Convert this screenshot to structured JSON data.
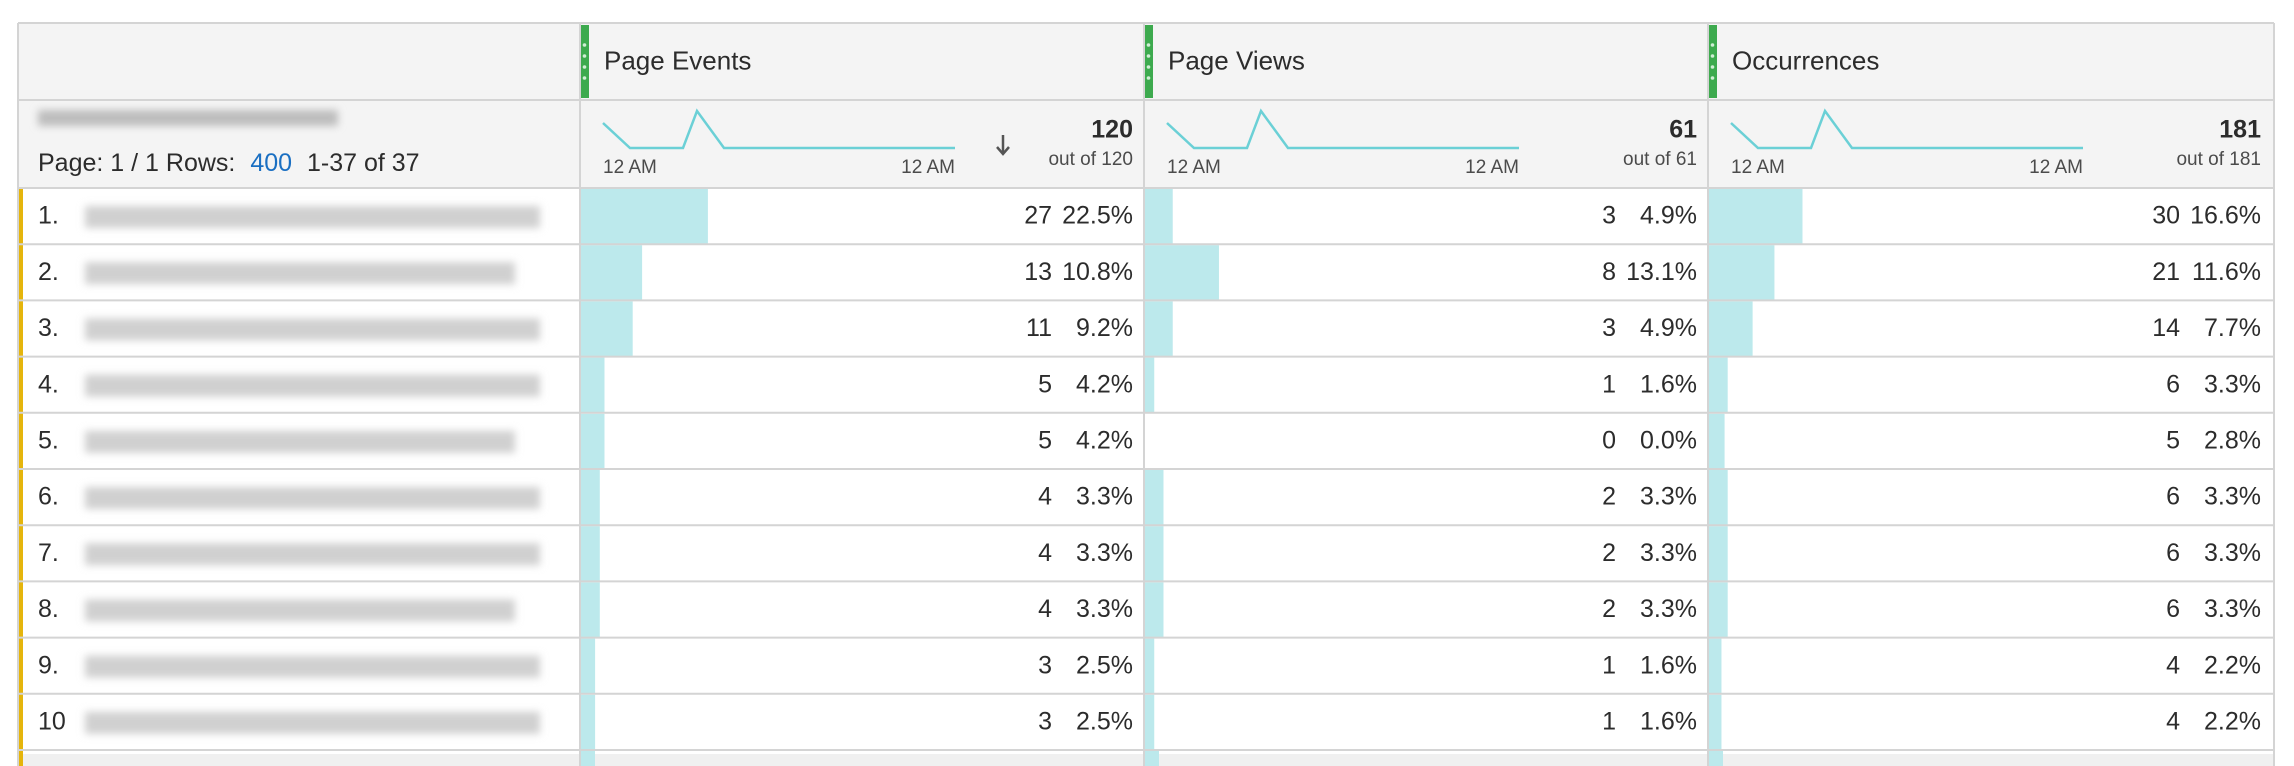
{
  "pagination": {
    "page_label": "Page: 1 / 1",
    "rows_label": "Rows:",
    "rows_value": "400",
    "range": "1-37 of 37"
  },
  "columns": [
    {
      "name": "Page Events",
      "total": 120,
      "total_label": "out of 120",
      "axis_start": "12 AM",
      "axis_end": "12 AM"
    },
    {
      "name": "Page Views",
      "total": 61,
      "total_label": "out of 61",
      "axis_start": "12 AM",
      "axis_end": "12 AM"
    },
    {
      "name": "Occurrences",
      "total": 181,
      "total_label": "out of 181",
      "axis_start": "12 AM",
      "axis_end": "12 AM"
    }
  ],
  "rows": [
    {
      "rank": "1.",
      "cells": [
        {
          "value": 27,
          "percent": "22.5%"
        },
        {
          "value": 3,
          "percent": "4.9%"
        },
        {
          "value": 30,
          "percent": "16.6%"
        }
      ]
    },
    {
      "rank": "2.",
      "cells": [
        {
          "value": 13,
          "percent": "10.8%"
        },
        {
          "value": 8,
          "percent": "13.1%"
        },
        {
          "value": 21,
          "percent": "11.6%"
        }
      ]
    },
    {
      "rank": "3.",
      "cells": [
        {
          "value": 11,
          "percent": "9.2%"
        },
        {
          "value": 3,
          "percent": "4.9%"
        },
        {
          "value": 14,
          "percent": "7.7%"
        }
      ]
    },
    {
      "rank": "4.",
      "cells": [
        {
          "value": 5,
          "percent": "4.2%"
        },
        {
          "value": 1,
          "percent": "1.6%"
        },
        {
          "value": 6,
          "percent": "3.3%"
        }
      ]
    },
    {
      "rank": "5.",
      "cells": [
        {
          "value": 5,
          "percent": "4.2%"
        },
        {
          "value": 0,
          "percent": "0.0%"
        },
        {
          "value": 5,
          "percent": "2.8%"
        }
      ]
    },
    {
      "rank": "6.",
      "cells": [
        {
          "value": 4,
          "percent": "3.3%"
        },
        {
          "value": 2,
          "percent": "3.3%"
        },
        {
          "value": 6,
          "percent": "3.3%"
        }
      ]
    },
    {
      "rank": "7.",
      "cells": [
        {
          "value": 4,
          "percent": "3.3%"
        },
        {
          "value": 2,
          "percent": "3.3%"
        },
        {
          "value": 6,
          "percent": "3.3%"
        }
      ]
    },
    {
      "rank": "8.",
      "cells": [
        {
          "value": 4,
          "percent": "3.3%"
        },
        {
          "value": 2,
          "percent": "3.3%"
        },
        {
          "value": 6,
          "percent": "3.3%"
        }
      ]
    },
    {
      "rank": "9.",
      "cells": [
        {
          "value": 3,
          "percent": "2.5%"
        },
        {
          "value": 1,
          "percent": "1.6%"
        },
        {
          "value": 4,
          "percent": "2.2%"
        }
      ]
    },
    {
      "rank": "10",
      "cells": [
        {
          "value": 3,
          "percent": "2.5%"
        },
        {
          "value": 1,
          "percent": "1.6%"
        },
        {
          "value": 4,
          "percent": "2.2%"
        }
      ]
    }
  ]
}
